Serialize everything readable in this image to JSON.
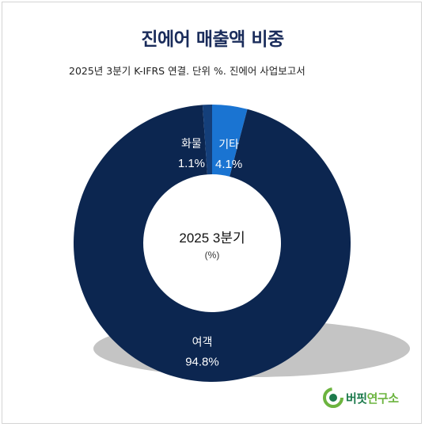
{
  "chart_data": {
    "type": "donut",
    "title": "진에어 매출액 비중",
    "subtitle": "2025년 3분기 K-IFRS 연결. 단위 %. 진에어 사업보고서",
    "center_label": "2025 3분기",
    "center_unit": "(%)",
    "slices": [
      {
        "label": "기타",
        "value": 4.1,
        "value_text": "4.1%",
        "color": "#1a74d2"
      },
      {
        "label": "여객",
        "value": 94.8,
        "value_text": "94.8%",
        "color": "#0c2650"
      },
      {
        "label": "화물",
        "value": 1.1,
        "value_text": "1.1%",
        "color": "#143f7a"
      }
    ]
  },
  "logo": {
    "part1": "버핏",
    "part2": "연구소"
  },
  "colors": {
    "title": "#1a2c5b",
    "shadow": "#bdbdbd"
  }
}
